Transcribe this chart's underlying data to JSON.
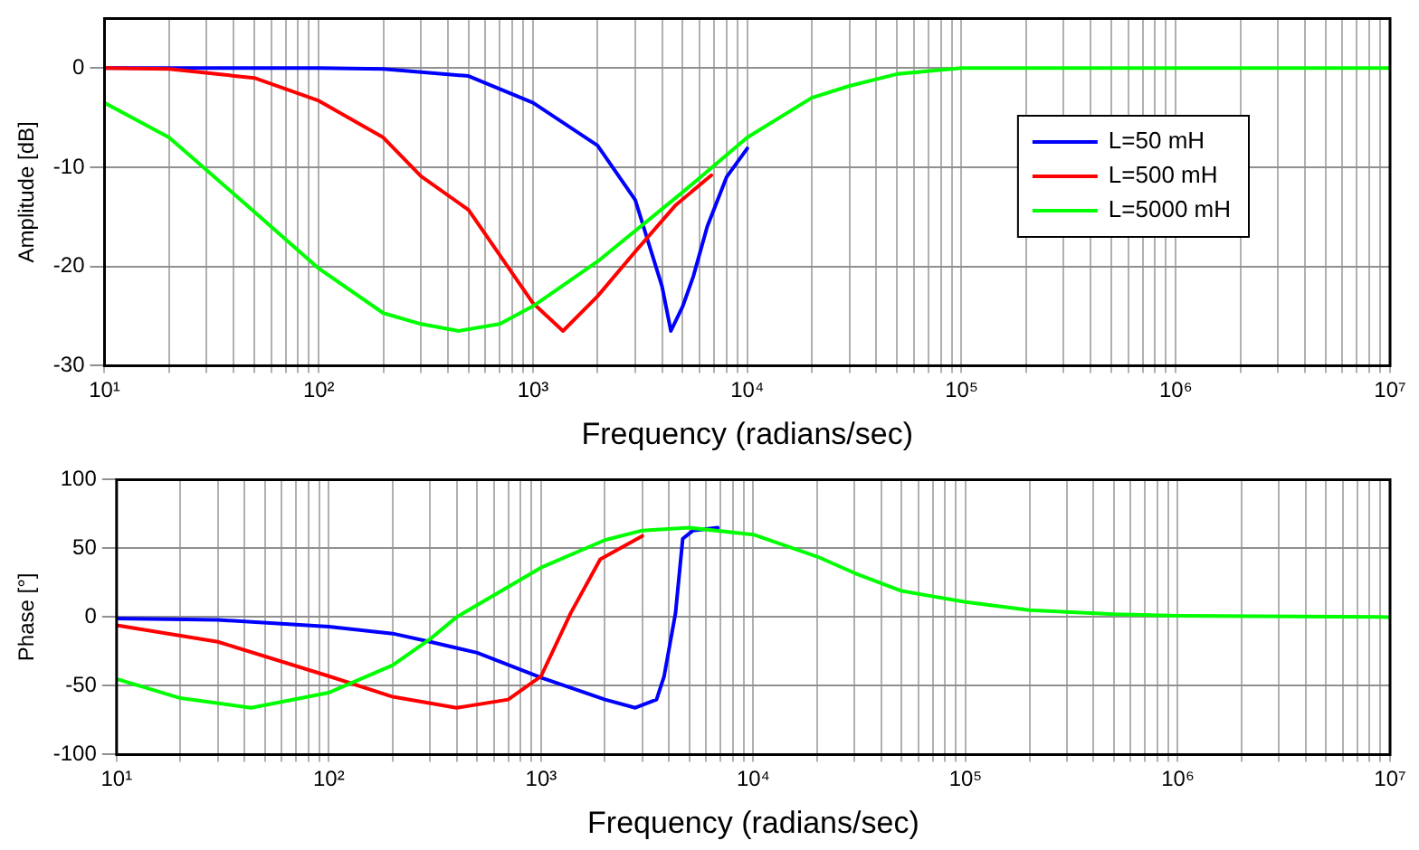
{
  "chart_data": [
    {
      "type": "line",
      "xlabel": "Frequency (radians/sec)",
      "ylabel": "Amplitude [dB]",
      "log": "x",
      "grid": true,
      "legend": "right",
      "marker": "none",
      "line_style": "solid",
      "xlim": [
        10,
        10000000
      ],
      "ylim": [
        -30,
        5
      ],
      "yticks": [
        -30,
        -20,
        -10,
        0
      ],
      "xticks": [
        {
          "value": 10,
          "label": "10¹"
        },
        {
          "value": 20,
          "label": null
        },
        {
          "value": 30,
          "label": null
        },
        {
          "value": 40,
          "label": null
        },
        {
          "value": 50,
          "label": null
        },
        {
          "value": 60,
          "label": null
        },
        {
          "value": 70,
          "label": null
        },
        {
          "value": 80,
          "label": null
        },
        {
          "value": 90,
          "label": null
        },
        {
          "value": 100,
          "label": "10²"
        },
        {
          "value": 200,
          "label": null
        },
        {
          "value": 300,
          "label": null
        },
        {
          "value": 400,
          "label": null
        },
        {
          "value": 500,
          "label": null
        },
        {
          "value": 600,
          "label": null
        },
        {
          "value": 700,
          "label": null
        },
        {
          "value": 800,
          "label": null
        },
        {
          "value": 900,
          "label": null
        },
        {
          "value": 1000,
          "label": "10³"
        },
        {
          "value": 2000,
          "label": null
        },
        {
          "value": 3000,
          "label": null
        },
        {
          "value": 4000,
          "label": null
        },
        {
          "value": 5000,
          "label": null
        },
        {
          "value": 6000,
          "label": null
        },
        {
          "value": 7000,
          "label": null
        },
        {
          "value": 8000,
          "label": null
        },
        {
          "value": 9000,
          "label": null
        },
        {
          "value": 10000,
          "label": "10⁴"
        },
        {
          "value": 20000,
          "label": null
        },
        {
          "value": 30000,
          "label": null
        },
        {
          "value": 40000,
          "label": null
        },
        {
          "value": 50000,
          "label": null
        },
        {
          "value": 60000,
          "label": null
        },
        {
          "value": 70000,
          "label": null
        },
        {
          "value": 80000,
          "label": null
        },
        {
          "value": 90000,
          "label": null
        },
        {
          "value": 100000,
          "label": "10⁵"
        },
        {
          "value": 200000,
          "label": null
        },
        {
          "value": 300000,
          "label": null
        },
        {
          "value": 400000,
          "label": null
        },
        {
          "value": 500000,
          "label": null
        },
        {
          "value": 600000,
          "label": null
        },
        {
          "value": 700000,
          "label": null
        },
        {
          "value": 800000,
          "label": null
        },
        {
          "value": 900000,
          "label": null
        },
        {
          "value": 1000000,
          "label": "10⁶"
        },
        {
          "value": 2000000,
          "label": null
        },
        {
          "value": 3000000,
          "label": null
        },
        {
          "value": 4000000,
          "label": null
        },
        {
          "value": 5000000,
          "label": null
        },
        {
          "value": 6000000,
          "label": null
        },
        {
          "value": 7000000,
          "label": null
        },
        {
          "value": 8000000,
          "label": null
        },
        {
          "value": 9000000,
          "label": null
        },
        {
          "value": 10000000,
          "label": "10⁷"
        }
      ],
      "series": [
        {
          "name": "L=50 mH",
          "color": "#0000ff",
          "x": [
            10,
            100,
            200,
            500,
            1000,
            2000,
            3000,
            4000,
            4400,
            5000,
            5600,
            6500,
            8000,
            10000
          ],
          "values": [
            0,
            0,
            -0.1,
            -0.8,
            -3.5,
            -7.8,
            -13.3,
            -22,
            -26.5,
            -24,
            -21,
            -16,
            -11,
            -8.1
          ]
        },
        {
          "name": "L=500 mH",
          "color": "#ff0000",
          "x": [
            10,
            20,
            50,
            100,
            200,
            300,
            500,
            1000,
            1380,
            2000,
            3000,
            4640,
            6800
          ],
          "values": [
            0,
            -0.1,
            -1,
            -3.3,
            -7,
            -10.9,
            -14.3,
            -23.7,
            -26.5,
            -23,
            -18.5,
            -13.8,
            -10.8
          ]
        },
        {
          "name": "L=5000 mH",
          "color": "#00ff00",
          "x": [
            10,
            20,
            30,
            50,
            100,
            200,
            300,
            450,
            700,
            1000,
            2000,
            3000,
            5000,
            10000,
            20000,
            30000,
            50000,
            100000,
            10000000
          ],
          "values": [
            -3.5,
            -7,
            -10.3,
            -14.5,
            -20.2,
            -24.7,
            -25.8,
            -26.5,
            -25.8,
            -24,
            -19.5,
            -16.4,
            -12.5,
            -7,
            -3,
            -1.8,
            -0.6,
            0,
            0
          ]
        }
      ]
    },
    {
      "type": "line",
      "xlabel": "Frequency (radians/sec)",
      "ylabel": "Phase [°]",
      "log": "x",
      "grid": true,
      "marker": "none",
      "line_style": "solid",
      "xlim": [
        10,
        10000000
      ],
      "ylim": [
        -100,
        100
      ],
      "yticks": [
        -100,
        -50,
        0,
        50,
        100
      ],
      "xticks": [
        {
          "value": 10,
          "label": "10¹"
        },
        {
          "value": 20,
          "label": null
        },
        {
          "value": 30,
          "label": null
        },
        {
          "value": 40,
          "label": null
        },
        {
          "value": 50,
          "label": null
        },
        {
          "value": 60,
          "label": null
        },
        {
          "value": 70,
          "label": null
        },
        {
          "value": 80,
          "label": null
        },
        {
          "value": 90,
          "label": null
        },
        {
          "value": 100,
          "label": "10²"
        },
        {
          "value": 200,
          "label": null
        },
        {
          "value": 300,
          "label": null
        },
        {
          "value": 400,
          "label": null
        },
        {
          "value": 500,
          "label": null
        },
        {
          "value": 600,
          "label": null
        },
        {
          "value": 700,
          "label": null
        },
        {
          "value": 800,
          "label": null
        },
        {
          "value": 900,
          "label": null
        },
        {
          "value": 1000,
          "label": "10³"
        },
        {
          "value": 2000,
          "label": null
        },
        {
          "value": 3000,
          "label": null
        },
        {
          "value": 4000,
          "label": null
        },
        {
          "value": 5000,
          "label": null
        },
        {
          "value": 6000,
          "label": null
        },
        {
          "value": 7000,
          "label": null
        },
        {
          "value": 8000,
          "label": null
        },
        {
          "value": 9000,
          "label": null
        },
        {
          "value": 10000,
          "label": "10⁴"
        },
        {
          "value": 20000,
          "label": null
        },
        {
          "value": 30000,
          "label": null
        },
        {
          "value": 40000,
          "label": null
        },
        {
          "value": 50000,
          "label": null
        },
        {
          "value": 60000,
          "label": null
        },
        {
          "value": 70000,
          "label": null
        },
        {
          "value": 80000,
          "label": null
        },
        {
          "value": 90000,
          "label": null
        },
        {
          "value": 100000,
          "label": "10⁵"
        },
        {
          "value": 200000,
          "label": null
        },
        {
          "value": 300000,
          "label": null
        },
        {
          "value": 400000,
          "label": null
        },
        {
          "value": 500000,
          "label": null
        },
        {
          "value": 600000,
          "label": null
        },
        {
          "value": 700000,
          "label": null
        },
        {
          "value": 800000,
          "label": null
        },
        {
          "value": 900000,
          "label": null
        },
        {
          "value": 1000000,
          "label": "10⁶"
        },
        {
          "value": 2000000,
          "label": null
        },
        {
          "value": 3000000,
          "label": null
        },
        {
          "value": 4000000,
          "label": null
        },
        {
          "value": 5000000,
          "label": null
        },
        {
          "value": 6000000,
          "label": null
        },
        {
          "value": 7000000,
          "label": null
        },
        {
          "value": 8000000,
          "label": null
        },
        {
          "value": 9000000,
          "label": null
        },
        {
          "value": 10000000,
          "label": "10⁷"
        }
      ],
      "series": [
        {
          "color": "#0000ff",
          "x": [
            10,
            30,
            100,
            200,
            300,
            500,
            1000,
            2000,
            2780,
            3500,
            3800,
            4300,
            4650,
            5200,
            6800
          ],
          "values": [
            -1,
            -2,
            -7,
            -12,
            -18,
            -26,
            -44,
            -60,
            -66,
            -60,
            -43,
            3,
            57,
            63,
            65
          ]
        },
        {
          "color": "#ff0000",
          "x": [
            10,
            30,
            100,
            200,
            400,
            700,
            1000,
            1380,
            1900,
            3000
          ],
          "values": [
            -6,
            -18,
            -43,
            -58,
            -66,
            -60,
            -43,
            3,
            42,
            59
          ]
        },
        {
          "color": "#00ff00",
          "x": [
            10,
            20,
            43,
            100,
            200,
            300,
            400,
            1000,
            2000,
            3000,
            5000,
            10000,
            20000,
            30000,
            50000,
            100000,
            200000,
            500000,
            1000000,
            10000000
          ],
          "values": [
            -45,
            -59,
            -66,
            -55,
            -35,
            -16,
            0,
            36,
            56,
            63,
            65,
            60,
            44,
            32,
            19,
            11,
            5,
            2,
            1,
            0
          ]
        }
      ]
    }
  ]
}
